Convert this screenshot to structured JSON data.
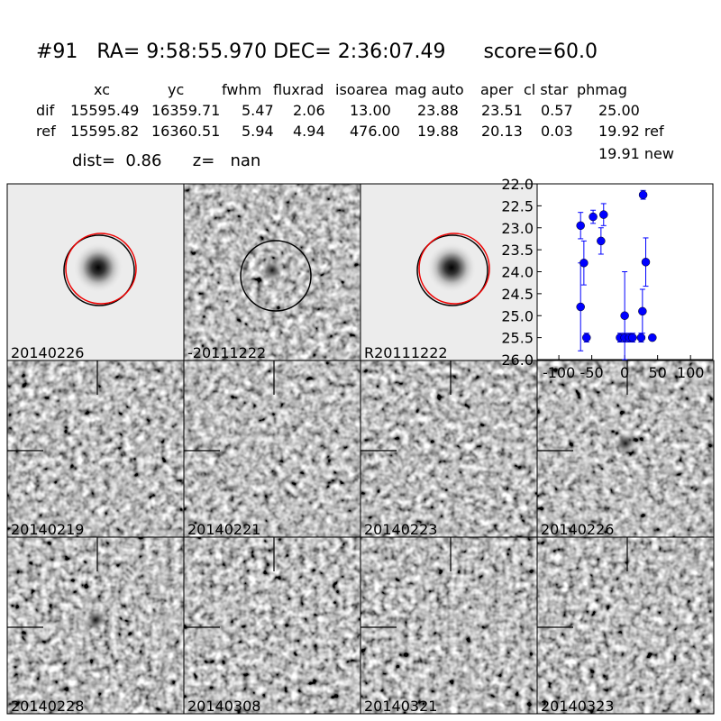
{
  "header": {
    "title": "#91   RA= 9:58:55.970 DEC= 2:36:07.49      score=60.0",
    "dist": "dist=  0.86      z=   nan"
  },
  "table": {
    "columns": [
      "xc",
      "yc",
      "fwhm",
      "fluxrad",
      "isoarea",
      "mag auto",
      "aper",
      "cl star",
      "phmag"
    ],
    "rows": [
      [
        "dif",
        "15595.49",
        "16359.71",
        "5.47",
        "2.06",
        "13.00",
        "23.88",
        "23.51",
        "0.57",
        "25.00"
      ],
      [
        "ref",
        "15595.82",
        "16360.51",
        "5.94",
        "4.94",
        "476.00",
        "19.88",
        "20.13",
        "0.03",
        "19.92 ref"
      ]
    ],
    "extra": "19.91 new"
  },
  "panels": [
    {
      "label": "20140226"
    },
    {
      "label": "-20111222"
    },
    {
      "label": "R20111222"
    },
    {
      "label": "20140219"
    },
    {
      "label": "20140221"
    },
    {
      "label": "20140223"
    },
    {
      "label": "20140226",
      "color": "#ff0000"
    },
    {
      "label": "20140228"
    },
    {
      "label": "20140308"
    },
    {
      "label": "20140321"
    },
    {
      "label": "20140323"
    }
  ],
  "chart_data": {
    "type": "scatter",
    "xlim": [
      -133,
      134
    ],
    "ylim": [
      26,
      22
    ],
    "xticks": [
      -100,
      -50,
      0,
      50,
      100
    ],
    "yticks": [
      {
        "value": 22,
        "label": "22.0"
      },
      22.5,
      {
        "value": 23,
        "label": "23.0"
      },
      23.5,
      {
        "value": 24,
        "label": "24.0"
      },
      24.5,
      {
        "value": 25,
        "label": "25.0"
      },
      25.5,
      {
        "value": 26,
        "label": "26.0"
      }
    ],
    "series": [
      {
        "color": "#0000ff",
        "x": [
          -67,
          -67,
          -62,
          -58,
          -48,
          -36,
          -32,
          -7,
          0,
          0,
          7,
          12,
          25,
          27,
          28,
          32,
          42
        ],
        "values": [
          22.95,
          24.8,
          23.8,
          25.5,
          22.75,
          23.3,
          22.7,
          25.5,
          25.0,
          25.5,
          25.5,
          25.5,
          25.5,
          24.9,
          22.25,
          23.78,
          25.5
        ],
        "errors": [
          0.3,
          1.0,
          0.5,
          0.1,
          0.15,
          0.3,
          0.25,
          0.1,
          1.0,
          0.1,
          0.1,
          0.1,
          0.1,
          0.5,
          0.1,
          0.55,
          0.05
        ]
      }
    ]
  }
}
